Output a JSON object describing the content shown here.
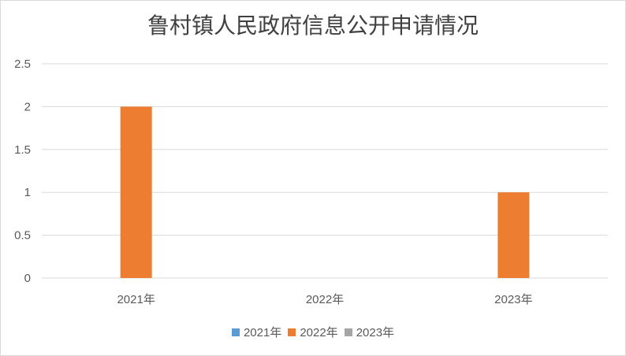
{
  "chart_data": {
    "type": "bar",
    "title": "鲁村镇人民政府信息公开申请情况",
    "categories": [
      "2021年",
      "2022年",
      "2023年"
    ],
    "series": [
      {
        "name": "2021年",
        "color": "#5B9BD5",
        "values": [
          0,
          0,
          0
        ]
      },
      {
        "name": "2022年",
        "color": "#ED7D31",
        "values": [
          2,
          0,
          1
        ]
      },
      {
        "name": "2023年",
        "color": "#A5A5A5",
        "values": [
          0,
          0,
          0
        ]
      }
    ],
    "yticks": [
      "0",
      "0.5",
      "1",
      "1.5",
      "2",
      "2.5"
    ],
    "ylim": [
      0,
      2.5
    ],
    "grid": true,
    "legend": "bottom",
    "xlabel": "",
    "ylabel": ""
  }
}
